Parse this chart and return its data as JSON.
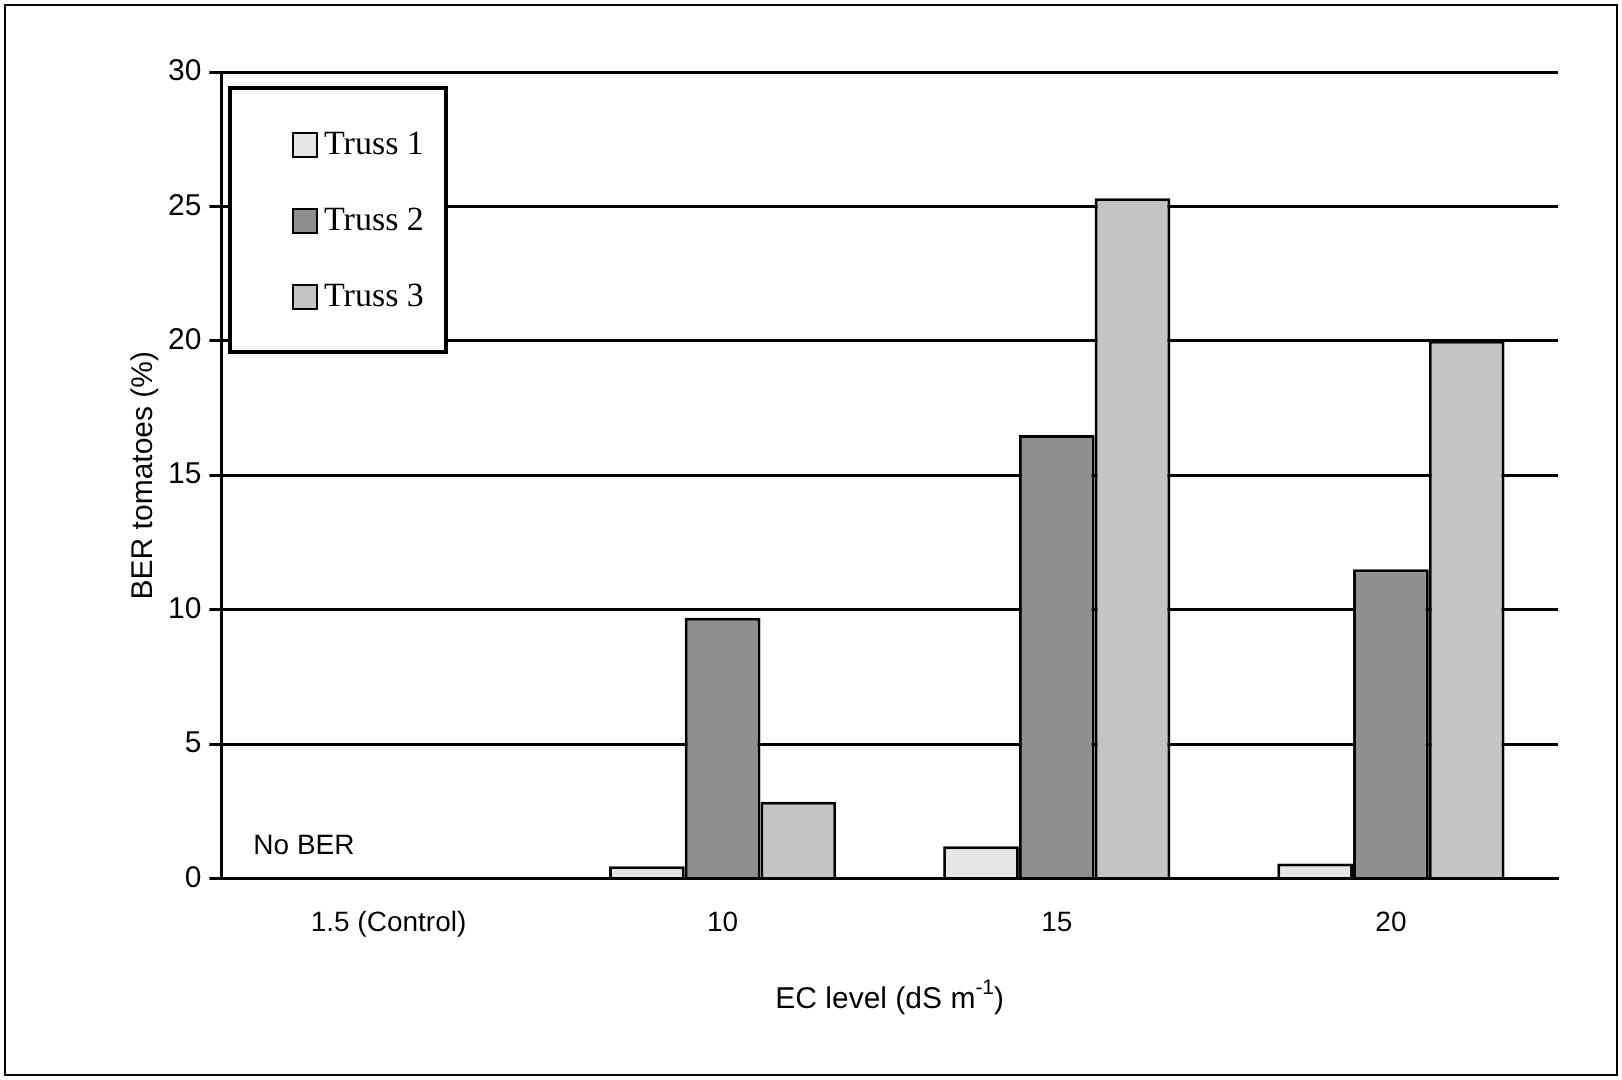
{
  "chart_data": {
    "type": "bar",
    "xlabel": "EC level (dS m$^{-1}$)",
    "ylabel": "BER tomatoes (%)",
    "categories": [
      "1.5 (Control)",
      "10",
      "15",
      "20"
    ],
    "series": [
      {
        "name": "Truss 1",
        "color": "#e6e6e6",
        "values": [
          0,
          0.45,
          1.2,
          0.55
        ]
      },
      {
        "name": "Truss 2",
        "color": "#8f8f8f",
        "values": [
          0,
          9.7,
          16.5,
          11.5
        ]
      },
      {
        "name": "Truss 3",
        "color": "#c4c4c4",
        "values": [
          0,
          2.85,
          25.3,
          20
        ]
      }
    ],
    "ylim": [
      0,
      30
    ],
    "yticks": [
      0,
      5,
      10,
      15,
      20,
      25,
      30
    ],
    "grid": "y",
    "legend": "top left",
    "annotations": [
      "No BER"
    ]
  }
}
